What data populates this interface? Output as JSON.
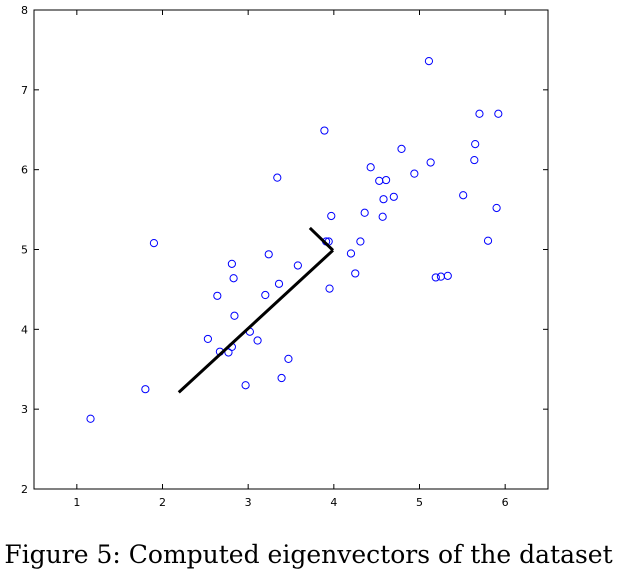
{
  "caption": "Figure 5: Computed eigenvectors of the dataset",
  "chart_data": {
    "type": "scatter",
    "title": "",
    "xlabel": "",
    "ylabel": "",
    "xlim": [
      0.5,
      6.5
    ],
    "ylim": [
      2,
      8
    ],
    "x_ticks": [
      1,
      2,
      3,
      4,
      5,
      6
    ],
    "y_ticks": [
      2,
      3,
      4,
      5,
      6,
      7,
      8
    ],
    "grid": false,
    "colors": {
      "points": "#0000ff",
      "vectors": "#000000",
      "axes": "#000000"
    },
    "series": [
      {
        "type": "scatter",
        "marker": "circle-open",
        "points": [
          [
            1.16,
            2.88
          ],
          [
            1.8,
            3.25
          ],
          [
            1.9,
            5.08
          ],
          [
            2.53,
            3.88
          ],
          [
            2.64,
            4.42
          ],
          [
            2.67,
            3.72
          ],
          [
            2.77,
            3.71
          ],
          [
            2.81,
            3.78
          ],
          [
            2.81,
            4.82
          ],
          [
            2.83,
            4.64
          ],
          [
            2.84,
            4.17
          ],
          [
            2.97,
            3.3
          ],
          [
            3.02,
            3.97
          ],
          [
            3.11,
            3.86
          ],
          [
            3.2,
            4.43
          ],
          [
            3.24,
            4.94
          ],
          [
            3.34,
            5.9
          ],
          [
            3.36,
            4.57
          ],
          [
            3.39,
            3.39
          ],
          [
            3.47,
            3.63
          ],
          [
            3.58,
            4.8
          ],
          [
            3.89,
            6.49
          ],
          [
            3.91,
            5.1
          ],
          [
            3.94,
            5.1
          ],
          [
            3.95,
            4.51
          ],
          [
            3.97,
            5.42
          ],
          [
            4.2,
            4.95
          ],
          [
            4.25,
            4.7
          ],
          [
            4.31,
            5.1
          ],
          [
            4.36,
            5.46
          ],
          [
            4.43,
            6.03
          ],
          [
            4.53,
            5.86
          ],
          [
            4.57,
            5.41
          ],
          [
            4.58,
            5.63
          ],
          [
            4.61,
            5.87
          ],
          [
            4.7,
            5.66
          ],
          [
            4.79,
            6.26
          ],
          [
            4.94,
            5.95
          ],
          [
            5.11,
            7.36
          ],
          [
            5.13,
            6.09
          ],
          [
            5.19,
            4.65
          ],
          [
            5.25,
            4.66
          ],
          [
            5.33,
            4.67
          ],
          [
            5.51,
            5.68
          ],
          [
            5.64,
            6.12
          ],
          [
            5.65,
            6.32
          ],
          [
            5.7,
            6.7
          ],
          [
            5.8,
            5.11
          ],
          [
            5.9,
            5.52
          ],
          [
            5.92,
            6.7
          ]
        ]
      },
      {
        "type": "line",
        "segments": [
          [
            [
              3.99,
              4.99
            ],
            [
              2.19,
              3.21
            ]
          ],
          [
            [
              3.99,
              4.99
            ],
            [
              3.72,
              5.27
            ]
          ]
        ]
      }
    ]
  }
}
